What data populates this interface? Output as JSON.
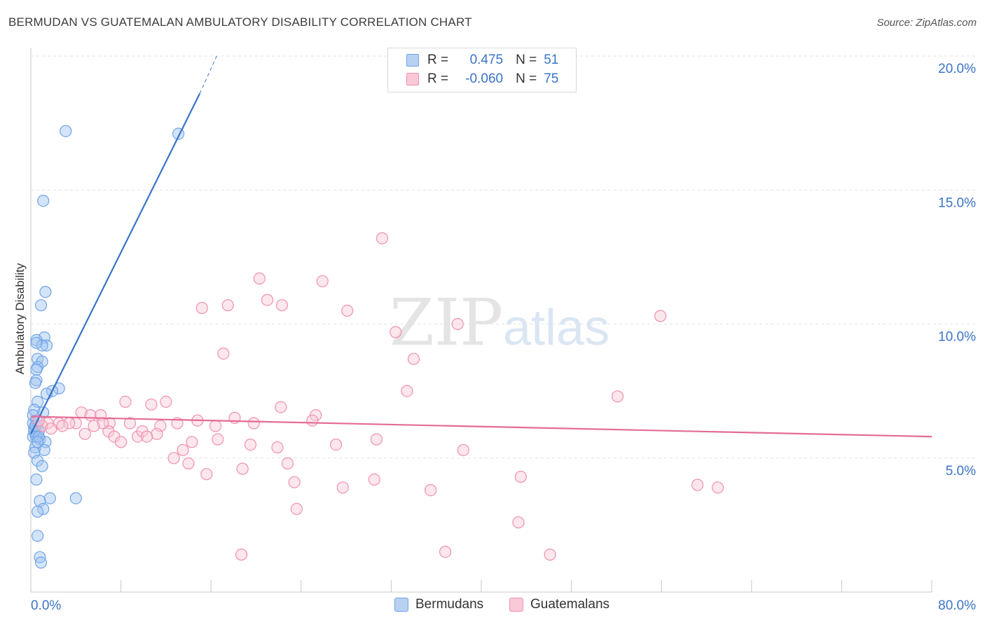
{
  "header": {
    "title": "BERMUDAN VS GUATEMALAN AMBULATORY DISABILITY CORRELATION CHART",
    "source": "Source: ZipAtlas.com"
  },
  "watermark": {
    "zip": "ZIP",
    "atlas": "atlas"
  },
  "legend": {
    "rows": [
      {
        "r_label": "R =",
        "r_value": "0.475",
        "n_label": "N =",
        "n_value": "51",
        "color": "#6fa3e8",
        "fill": "#b8d1f3"
      },
      {
        "r_label": "R =",
        "r_value": "-0.060",
        "n_label": "N =",
        "n_value": "75",
        "color": "#f090b0",
        "fill": "#f9c9d8"
      }
    ]
  },
  "bottom_legend": [
    {
      "label": "Bermudans",
      "color": "#6fa3e8",
      "fill": "#b8d1f3"
    },
    {
      "label": "Guatemalans",
      "color": "#f090b0",
      "fill": "#f9c9d8"
    }
  ],
  "chart_data": {
    "type": "scatter",
    "title": "BERMUDAN VS GUATEMALAN AMBULATORY DISABILITY CORRELATION CHART",
    "xlabel": "",
    "ylabel": "Ambulatory Disability",
    "xlim": [
      0,
      80
    ],
    "ylim": [
      0,
      21
    ],
    "x_tick_labels": [
      "0.0%",
      "80.0%"
    ],
    "y_ticks": [
      5,
      10,
      15,
      20
    ],
    "y_tick_labels": [
      "5.0%",
      "10.0%",
      "15.0%",
      "20.0%"
    ],
    "series": [
      {
        "name": "Bermudans",
        "color": "#3a74c6",
        "stroke": "#6fa3e8",
        "fill": "rgba(160,196,240,0.45)",
        "trend": {
          "x1": 0,
          "y1": 5.9,
          "x2": 15.0,
          "y2": 18.6,
          "dash_x2": 16.5,
          "dash_y2": 20.0
        },
        "points": [
          [
            3.1,
            17.2
          ],
          [
            13.1,
            17.1
          ],
          [
            1.1,
            14.6
          ],
          [
            1.3,
            11.2
          ],
          [
            0.9,
            10.7
          ],
          [
            1.2,
            9.5
          ],
          [
            0.5,
            9.4
          ],
          [
            1.4,
            9.2
          ],
          [
            1.0,
            9.2
          ],
          [
            0.5,
            9.3
          ],
          [
            0.6,
            8.7
          ],
          [
            1.0,
            8.6
          ],
          [
            0.6,
            8.4
          ],
          [
            0.5,
            8.3
          ],
          [
            0.5,
            7.9
          ],
          [
            0.4,
            7.8
          ],
          [
            2.5,
            7.6
          ],
          [
            1.9,
            7.5
          ],
          [
            1.4,
            7.4
          ],
          [
            0.6,
            7.1
          ],
          [
            0.3,
            6.8
          ],
          [
            1.1,
            6.7
          ],
          [
            0.5,
            6.4
          ],
          [
            0.2,
            6.3
          ],
          [
            0.6,
            6.2
          ],
          [
            0.3,
            6.1
          ],
          [
            0.7,
            6.0
          ],
          [
            0.4,
            5.9
          ],
          [
            0.2,
            5.8
          ],
          [
            0.8,
            5.7
          ],
          [
            0.5,
            5.8
          ],
          [
            1.3,
            5.6
          ],
          [
            0.4,
            5.4
          ],
          [
            1.2,
            5.3
          ],
          [
            0.3,
            5.2
          ],
          [
            0.6,
            4.9
          ],
          [
            1.0,
            4.7
          ],
          [
            0.5,
            4.2
          ],
          [
            4.0,
            3.5
          ],
          [
            1.7,
            3.5
          ],
          [
            0.8,
            3.4
          ],
          [
            1.1,
            3.1
          ],
          [
            0.6,
            3.0
          ],
          [
            0.6,
            2.1
          ],
          [
            0.8,
            1.3
          ],
          [
            0.9,
            1.1
          ],
          [
            0.2,
            6.6
          ],
          [
            0.3,
            6.0
          ],
          [
            0.7,
            5.8
          ],
          [
            0.4,
            6.2
          ],
          [
            0.6,
            5.6
          ]
        ]
      },
      {
        "name": "Guatemalans",
        "color": "#e46b95",
        "stroke": "#f090b0",
        "fill": "rgba(249,201,216,0.45)",
        "trend": {
          "x1": 0,
          "y1": 6.55,
          "x2": 80,
          "y2": 5.8
        },
        "points": [
          [
            31.2,
            13.2
          ],
          [
            20.3,
            11.7
          ],
          [
            25.9,
            11.6
          ],
          [
            21.0,
            10.9
          ],
          [
            17.5,
            10.7
          ],
          [
            22.3,
            10.7
          ],
          [
            15.2,
            10.6
          ],
          [
            28.1,
            10.5
          ],
          [
            55.9,
            10.3
          ],
          [
            32.4,
            9.7
          ],
          [
            37.9,
            10.0
          ],
          [
            17.1,
            8.9
          ],
          [
            34.0,
            8.7
          ],
          [
            33.4,
            7.5
          ],
          [
            52.1,
            7.3
          ],
          [
            8.4,
            7.1
          ],
          [
            10.7,
            7.0
          ],
          [
            12.0,
            7.1
          ],
          [
            22.2,
            6.9
          ],
          [
            4.5,
            6.7
          ],
          [
            5.3,
            6.6
          ],
          [
            6.2,
            6.6
          ],
          [
            18.1,
            6.5
          ],
          [
            25.3,
            6.6
          ],
          [
            8.8,
            6.3
          ],
          [
            7.0,
            6.3
          ],
          [
            4.0,
            6.3
          ],
          [
            3.4,
            6.3
          ],
          [
            2.5,
            6.3
          ],
          [
            1.5,
            6.3
          ],
          [
            1.0,
            6.2
          ],
          [
            13.0,
            6.3
          ],
          [
            14.8,
            6.4
          ],
          [
            25.0,
            6.4
          ],
          [
            1.8,
            6.1
          ],
          [
            11.5,
            6.2
          ],
          [
            16.4,
            6.2
          ],
          [
            19.8,
            6.3
          ],
          [
            0.7,
            6.4
          ],
          [
            2.8,
            6.2
          ],
          [
            6.9,
            6.0
          ],
          [
            9.5,
            5.8
          ],
          [
            11.2,
            5.9
          ],
          [
            7.4,
            5.8
          ],
          [
            9.9,
            6.0
          ],
          [
            4.8,
            5.9
          ],
          [
            10.3,
            5.8
          ],
          [
            16.6,
            5.7
          ],
          [
            8.0,
            5.6
          ],
          [
            14.3,
            5.6
          ],
          [
            19.5,
            5.5
          ],
          [
            27.1,
            5.5
          ],
          [
            30.7,
            5.7
          ],
          [
            21.9,
            5.4
          ],
          [
            13.5,
            5.3
          ],
          [
            38.4,
            5.3
          ],
          [
            12.7,
            5.0
          ],
          [
            14.0,
            4.8
          ],
          [
            22.8,
            4.8
          ],
          [
            18.8,
            4.6
          ],
          [
            15.6,
            4.4
          ],
          [
            23.4,
            4.1
          ],
          [
            30.5,
            4.2
          ],
          [
            43.5,
            4.3
          ],
          [
            27.7,
            3.9
          ],
          [
            59.2,
            4.0
          ],
          [
            61.0,
            3.9
          ],
          [
            35.5,
            3.8
          ],
          [
            23.6,
            3.1
          ],
          [
            43.3,
            2.6
          ],
          [
            36.8,
            1.5
          ],
          [
            46.1,
            1.4
          ],
          [
            18.7,
            1.4
          ],
          [
            6.4,
            6.3
          ],
          [
            5.6,
            6.2
          ]
        ]
      }
    ]
  }
}
